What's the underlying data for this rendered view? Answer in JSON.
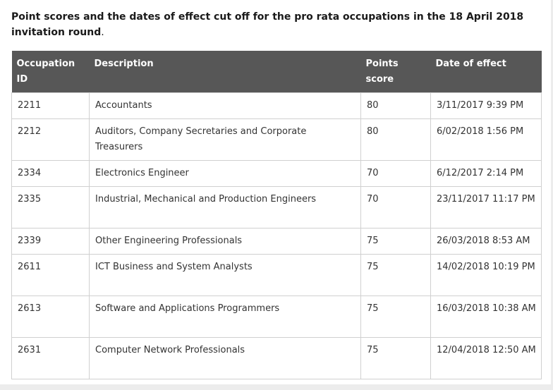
{
  "heading": {
    "bold_text": "Point scores and the dates of effect cut off for the pro rata occupations in the 18 April 2018 invitation round",
    "suffix": "."
  },
  "table": {
    "headers": {
      "occupation_id": "Occupation ID",
      "description": "Description",
      "points_score": "Points score",
      "date_of_effect": "Date of effect"
    },
    "rows": [
      {
        "id": "2211",
        "description": "Accountants",
        "points": "80",
        "date": "3/11/2017  9:39 PM"
      },
      {
        "id": "2212",
        "description": "Auditors, Company Secretaries and Corporate Treasurers",
        "points": "80",
        "date": "6/02/2018  1:56 PM"
      },
      {
        "id": "2334",
        "description": "Electronics Engineer",
        "points": "70",
        "date": "6/12/2017  2:14 PM"
      },
      {
        "id": "2335",
        "description": "Industrial, Mechanical and Production Engineers",
        "points": "70",
        "date": "23/11/2017  11:17 PM"
      },
      {
        "id": "2339",
        "description": "Other Engineering Professionals",
        "points": "75",
        "date": "26/03/2018  8:53 AM"
      },
      {
        "id": "2611",
        "description": "ICT Business and System Analysts",
        "points": "75",
        "date": "14/02/2018  10:19 PM"
      },
      {
        "id": "2613",
        "description": "Software and Applications Programmers",
        "points": "75",
        "date": "16/03/2018  10:38 AM"
      },
      {
        "id": "2631",
        "description": "Computer Network Professionals",
        "points": "75",
        "date": "12/04/2018  12:50 AM"
      }
    ]
  }
}
